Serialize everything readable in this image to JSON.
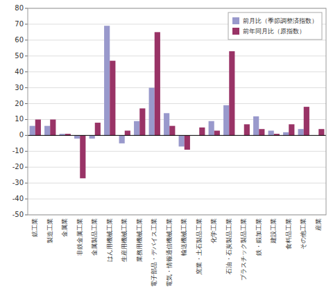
{
  "chart_data": {
    "type": "bar",
    "categories": [
      "鉱工業",
      "製造工業",
      "金属業",
      "非鉄金属工業",
      "金属製品工業",
      "はん用機械工業",
      "生産用機械工業",
      "業務用機械工業",
      "電子部品・デバイス工業",
      "電気・情報通信機械工業",
      "輸送機械工業",
      "窯業・土石製品工業",
      "化学工業",
      "石油・石炭製品工業",
      "プラスチック製品工業",
      "鉄・鍛加工業",
      "建設工業",
      "食料品工業",
      "その他工業",
      "産業"
    ],
    "series": [
      {
        "name": "前月比（季節調整済指数）",
        "color": "#9999cc",
        "values": [
          6,
          6,
          1,
          -2,
          -2,
          69,
          -5,
          9,
          30,
          14,
          -7,
          0,
          9,
          19,
          0,
          12,
          3,
          2,
          4,
          0
        ]
      },
      {
        "name": "前年同月比（原指数）",
        "color": "#993366",
        "values": [
          10,
          10,
          1,
          -27,
          8,
          47,
          3,
          17,
          65,
          6,
          -9,
          5,
          3,
          53,
          7,
          4,
          1,
          7,
          18,
          4
        ]
      }
    ],
    "ylim": [
      -50,
      80
    ],
    "yticks": [
      -50,
      -40,
      -30,
      -20,
      -10,
      0,
      10,
      20,
      30,
      40,
      50,
      60,
      70,
      80
    ],
    "grid": true,
    "legend": "upper right"
  }
}
